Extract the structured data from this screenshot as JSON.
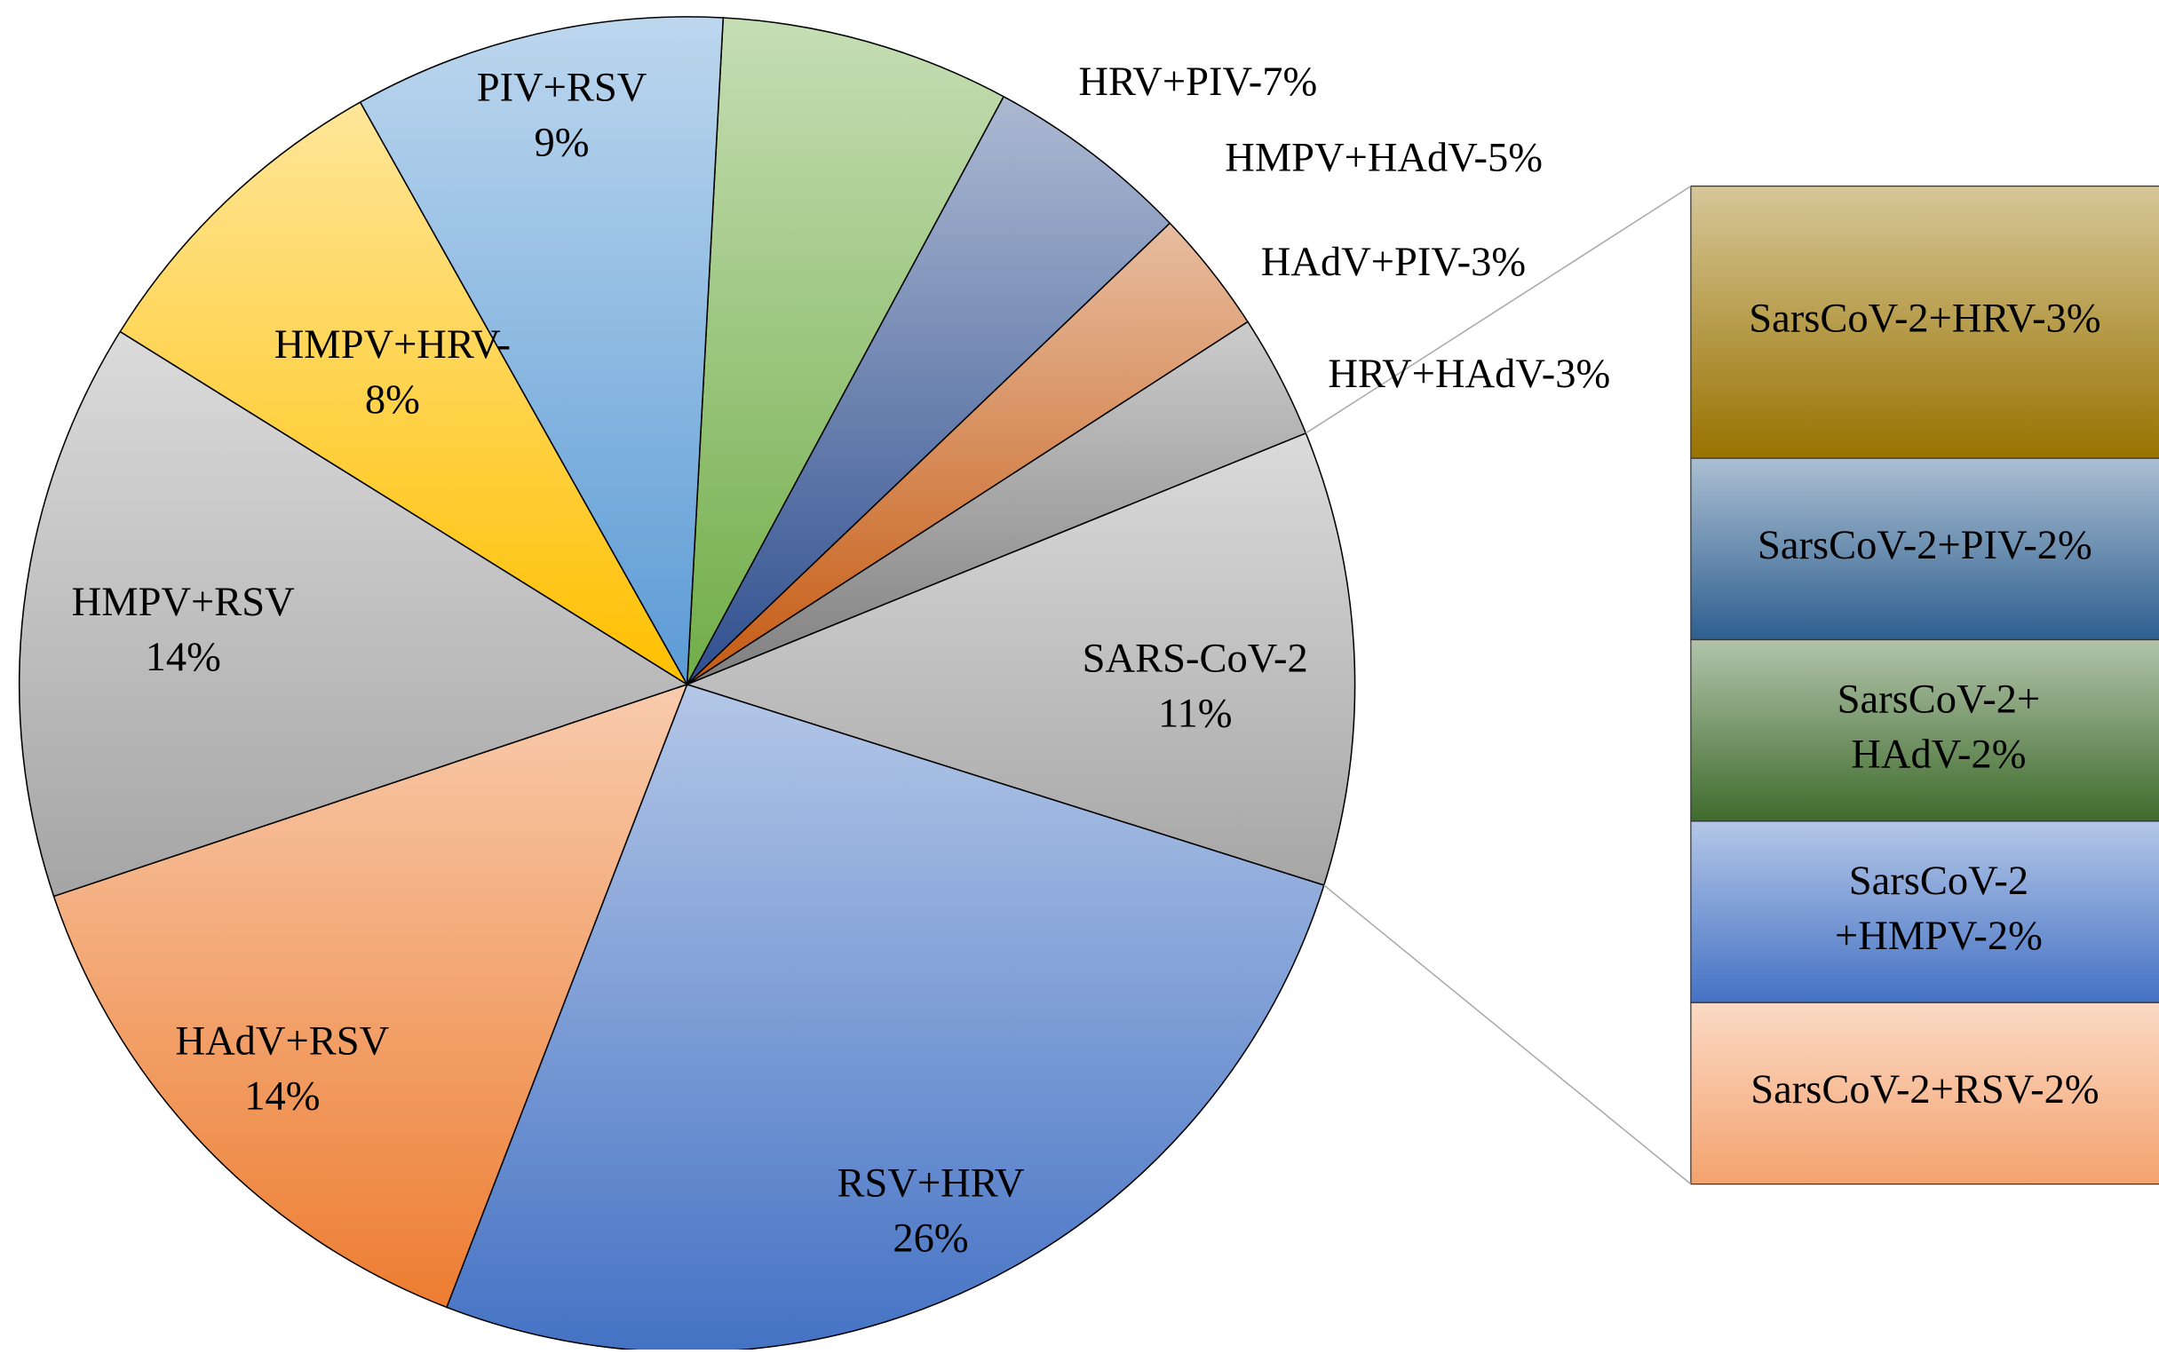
{
  "chart_data": {
    "type": "pie_of_bar",
    "categories": [
      "HRV+PIV-7%",
      "HMPV+HAdV-5%",
      "HAdV+PIV-3%",
      "HRV+HAdV-3%",
      "SARS-CoV-2",
      "RSV+HRV",
      "HAdV+RSV",
      "HMPV+RSV",
      "HMPV+HRV-",
      "PIV+RSV"
    ],
    "values": [
      7,
      5,
      3,
      3,
      11,
      26,
      14,
      14,
      8,
      9
    ],
    "value_labels": [
      null,
      null,
      null,
      null,
      "11%",
      "26%",
      "14%",
      "14%",
      "8%",
      "9%"
    ],
    "colors": [
      "#70ad47",
      "#2f4f8f",
      "#c55a11",
      "#7f7f7f",
      "#a6a6a6",
      "#4472c4",
      "#ed7d31",
      "#a5a5a5",
      "#ffc000",
      "#5b9bd5"
    ],
    "bar": {
      "labels": [
        [
          "SarsCoV-2+HRV-3%"
        ],
        [
          "SarsCoV-2+PIV-2%"
        ],
        [
          "SarsCoV-2+",
          "HAdV-2%"
        ],
        [
          "SarsCoV-2",
          "+HMPV-2%"
        ],
        [
          "SarsCoV-2+RSV-2%"
        ]
      ],
      "values": [
        3,
        2,
        2,
        2,
        2
      ],
      "colors": [
        "#997300",
        "#2e5f8f",
        "#3f6b2c",
        "#4472c4",
        "#f4a26e"
      ]
    }
  }
}
